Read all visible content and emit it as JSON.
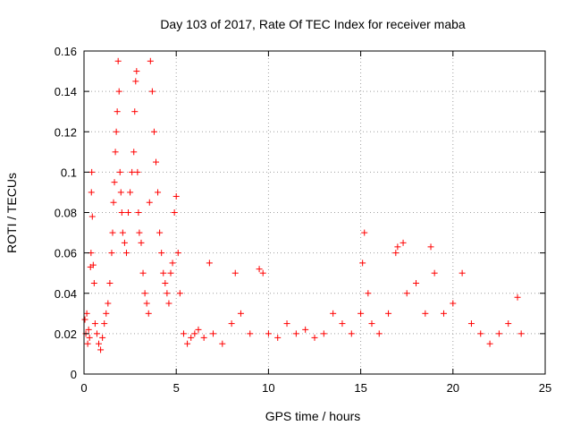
{
  "chart_data": {
    "type": "scatter",
    "title": "Day 103 of 2017, Rate Of TEC Index for receiver maba",
    "xlabel": "GPS time / hours",
    "ylabel": "ROTI / TECUs",
    "xlim": [
      0,
      25
    ],
    "ylim": [
      0,
      0.16
    ],
    "x_ticks": [
      0,
      5,
      10,
      15,
      20,
      25
    ],
    "x_tick_labels": [
      "0",
      "5",
      "10",
      "15",
      "20",
      "25"
    ],
    "y_ticks": [
      0,
      0.02,
      0.04,
      0.06,
      0.08,
      0.1,
      0.12,
      0.14,
      0.16
    ],
    "y_tick_labels": [
      "0",
      "0.02",
      "0.04",
      "0.06",
      "0.08",
      "0.1",
      "0.12",
      "0.14",
      "0.16"
    ],
    "grid": true,
    "marker": "plus",
    "color": "#ff0000",
    "legend": "none",
    "series": [
      {
        "values": [
          [
            0.05,
            0.027
          ],
          [
            0.1,
            0.02
          ],
          [
            0.15,
            0.03
          ],
          [
            0.2,
            0.015
          ],
          [
            0.25,
            0.022
          ],
          [
            0.3,
            0.018
          ],
          [
            0.35,
            0.053
          ],
          [
            0.38,
            0.06
          ],
          [
            0.4,
            0.09
          ],
          [
            0.42,
            0.1
          ],
          [
            0.45,
            0.078
          ],
          [
            0.5,
            0.054
          ],
          [
            0.55,
            0.045
          ],
          [
            0.6,
            0.025
          ],
          [
            0.7,
            0.02
          ],
          [
            0.8,
            0.015
          ],
          [
            0.9,
            0.012
          ],
          [
            1.0,
            0.018
          ],
          [
            1.1,
            0.025
          ],
          [
            1.2,
            0.03
          ],
          [
            1.3,
            0.035
          ],
          [
            1.4,
            0.045
          ],
          [
            1.5,
            0.06
          ],
          [
            1.55,
            0.07
          ],
          [
            1.6,
            0.085
          ],
          [
            1.65,
            0.095
          ],
          [
            1.7,
            0.11
          ],
          [
            1.75,
            0.12
          ],
          [
            1.8,
            0.13
          ],
          [
            1.85,
            0.155
          ],
          [
            1.9,
            0.14
          ],
          [
            1.95,
            0.1
          ],
          [
            2.0,
            0.09
          ],
          [
            2.05,
            0.08
          ],
          [
            2.1,
            0.07
          ],
          [
            2.2,
            0.065
          ],
          [
            2.3,
            0.06
          ],
          [
            2.4,
            0.08
          ],
          [
            2.5,
            0.09
          ],
          [
            2.6,
            0.1
          ],
          [
            2.7,
            0.11
          ],
          [
            2.75,
            0.13
          ],
          [
            2.8,
            0.145
          ],
          [
            2.85,
            0.15
          ],
          [
            2.9,
            0.1
          ],
          [
            2.95,
            0.08
          ],
          [
            3.0,
            0.07
          ],
          [
            3.1,
            0.065
          ],
          [
            3.2,
            0.05
          ],
          [
            3.3,
            0.04
          ],
          [
            3.4,
            0.035
          ],
          [
            3.5,
            0.03
          ],
          [
            3.55,
            0.085
          ],
          [
            3.6,
            0.155
          ],
          [
            3.7,
            0.14
          ],
          [
            3.8,
            0.12
          ],
          [
            3.9,
            0.105
          ],
          [
            4.0,
            0.09
          ],
          [
            4.1,
            0.07
          ],
          [
            4.2,
            0.06
          ],
          [
            4.3,
            0.05
          ],
          [
            4.4,
            0.045
          ],
          [
            4.5,
            0.04
          ],
          [
            4.6,
            0.035
          ],
          [
            4.7,
            0.05
          ],
          [
            4.8,
            0.055
          ],
          [
            4.9,
            0.08
          ],
          [
            5.0,
            0.088
          ],
          [
            5.1,
            0.06
          ],
          [
            5.2,
            0.04
          ],
          [
            5.4,
            0.02
          ],
          [
            5.6,
            0.015
          ],
          [
            5.8,
            0.018
          ],
          [
            6.0,
            0.02
          ],
          [
            6.2,
            0.022
          ],
          [
            6.5,
            0.018
          ],
          [
            6.8,
            0.055
          ],
          [
            7.0,
            0.02
          ],
          [
            7.5,
            0.015
          ],
          [
            8.0,
            0.025
          ],
          [
            8.2,
            0.05
          ],
          [
            8.5,
            0.03
          ],
          [
            9.0,
            0.02
          ],
          [
            9.5,
            0.052
          ],
          [
            9.7,
            0.05
          ],
          [
            10.0,
            0.02
          ],
          [
            10.5,
            0.018
          ],
          [
            11.0,
            0.025
          ],
          [
            11.5,
            0.02
          ],
          [
            12.0,
            0.022
          ],
          [
            12.5,
            0.018
          ],
          [
            13.0,
            0.02
          ],
          [
            13.5,
            0.03
          ],
          [
            14.0,
            0.025
          ],
          [
            14.5,
            0.02
          ],
          [
            15.0,
            0.03
          ],
          [
            15.1,
            0.055
          ],
          [
            15.2,
            0.07
          ],
          [
            15.4,
            0.04
          ],
          [
            15.6,
            0.025
          ],
          [
            16.0,
            0.02
          ],
          [
            16.5,
            0.03
          ],
          [
            16.9,
            0.06
          ],
          [
            17.0,
            0.063
          ],
          [
            17.3,
            0.065
          ],
          [
            17.5,
            0.04
          ],
          [
            18.0,
            0.045
          ],
          [
            18.5,
            0.03
          ],
          [
            18.8,
            0.063
          ],
          [
            19.0,
            0.05
          ],
          [
            19.5,
            0.03
          ],
          [
            20.0,
            0.035
          ],
          [
            20.5,
            0.05
          ],
          [
            21.0,
            0.025
          ],
          [
            21.5,
            0.02
          ],
          [
            22.0,
            0.015
          ],
          [
            22.5,
            0.02
          ],
          [
            23.0,
            0.025
          ],
          [
            23.5,
            0.038
          ],
          [
            23.7,
            0.02
          ]
        ]
      }
    ]
  }
}
